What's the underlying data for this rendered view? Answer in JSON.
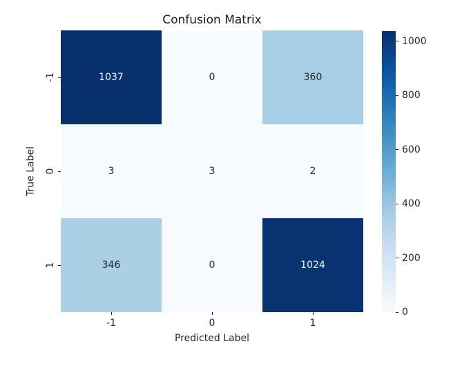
{
  "chart_data": {
    "type": "heatmap",
    "title": "Confusion Matrix",
    "xlabel": "Predicted Label",
    "ylabel": "True Label",
    "x_tick_labels": [
      "-1",
      "0",
      "1"
    ],
    "y_tick_labels": [
      "-1",
      "0",
      "1"
    ],
    "matrix": [
      [
        1037,
        0,
        360
      ],
      [
        3,
        3,
        2
      ],
      [
        346,
        0,
        1024
      ]
    ],
    "vmin": 0,
    "vmax": 1037,
    "colormap": "Blues",
    "colorbar_ticks": [
      0,
      200,
      400,
      600,
      800,
      1000
    ],
    "legend_position": "right-colorbar",
    "grid": false,
    "colors": {
      "annotation_dark_text": "#262626",
      "annotation_light_text": "#f2f7fc",
      "cmap_low": "#f7fbff",
      "cmap_high": "#08306b",
      "title_text": "#1a1a1a",
      "background": "#ffffff"
    }
  }
}
